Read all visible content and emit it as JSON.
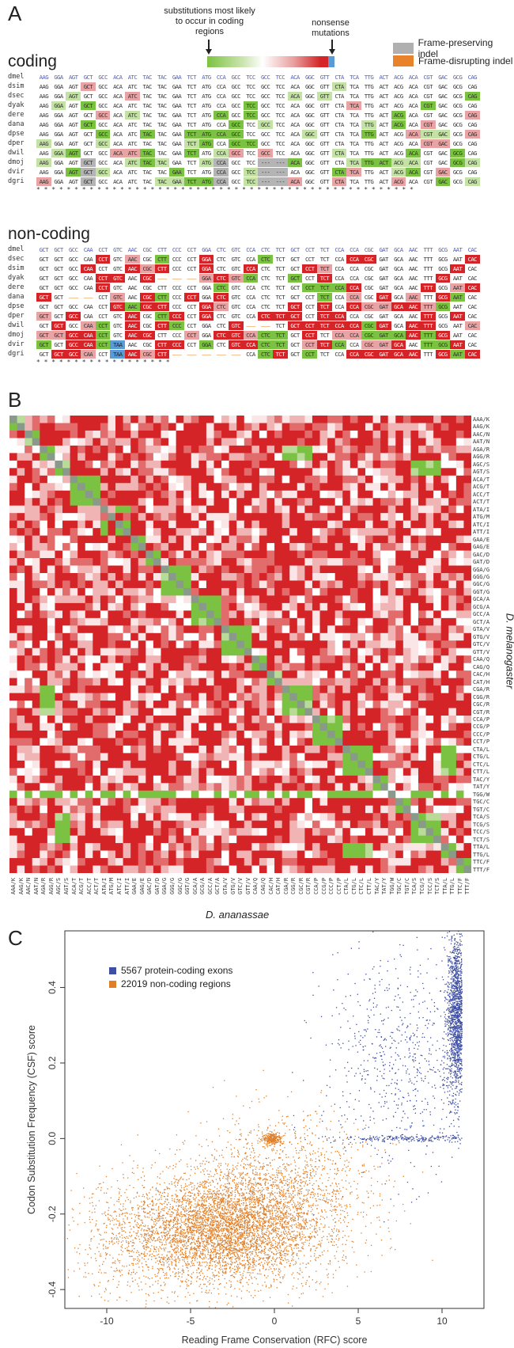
{
  "panels": {
    "a": "A",
    "b": "B",
    "c": "C"
  },
  "panel_a": {
    "note_left": "substitutions most likely to occur in coding regions",
    "note_right": "nonsense mutations",
    "legend": [
      {
        "label": "Frame-preserving indel",
        "color": "#b0b0b0"
      },
      {
        "label": "Frame-disrupting indel",
        "color": "#e9832b"
      }
    ],
    "coding_title": "coding",
    "noncoding_title": "non-coding",
    "coding_species": [
      "dmel",
      "dsim",
      "dsec",
      "dyak",
      "dere",
      "dana",
      "dpse",
      "dper",
      "dwil",
      "dmoj",
      "dvir",
      "dgri"
    ],
    "coding_codons": [
      "AAG",
      "GGA",
      "AGT",
      "GCT",
      "GCC",
      "ACA",
      "ATC",
      "TAC",
      "TAC",
      "GAA",
      "TCT",
      "ATG",
      "CCA",
      "GCC",
      "TCC",
      "GCC",
      "TCC",
      "ACA",
      "GGC",
      "GTT",
      "CTA",
      "TCA",
      "TTG",
      "ACT",
      "ACG",
      "ACA",
      "CGT",
      "GAC",
      "GCG",
      "CAG"
    ],
    "coding_stars": "** * ** ** ** ** ** *** ** ** * ** ** ** ** ** ** **** ** ** * * ** ** * **",
    "noncoding_species": [
      "dmel",
      "dsec",
      "dsim",
      "dyak",
      "dere",
      "dana",
      "dpse",
      "dper",
      "dwil",
      "dmoj",
      "dvir",
      "dgri"
    ],
    "noncoding_codons": [
      "GCT",
      "GCT",
      "GCC",
      "CAA",
      "CCT",
      "GTC",
      "AAC",
      "CGC",
      "CTT",
      "CCC",
      "CCT",
      "GGA",
      "CTC",
      "GTC",
      "CCA",
      "CTC",
      "TCT",
      "GCT",
      "CCT",
      "TCT",
      "CCA",
      "CCA",
      "CGC",
      "GAT",
      "GCA",
      "AAC",
      "TTT",
      "GCG",
      "AAT",
      "CAC"
    ],
    "noncoding_stars": "* * * * * ** ** *** * * ****"
  },
  "panel_b": {
    "xlabel": "D. ananassae",
    "ylabel": "D. melanogaster",
    "codons": [
      "AAA/K",
      "AAG/K",
      "AAC/N",
      "AAT/N",
      "AGA/R",
      "AGG/R",
      "AGC/S",
      "AGT/S",
      "ACA/T",
      "ACG/T",
      "ACC/T",
      "ACT/T",
      "ATA/I",
      "ATG/M",
      "ATC/I",
      "ATT/I",
      "GAA/E",
      "GAG/E",
      "GAC/D",
      "GAT/D",
      "GGA/G",
      "GGG/G",
      "GGC/G",
      "GGT/G",
      "GCA/A",
      "GCG/A",
      "GCC/A",
      "GCT/A",
      "GTA/V",
      "GTG/V",
      "GTC/V",
      "GTT/V",
      "CAA/Q",
      "CAG/Q",
      "CAC/H",
      "CAT/H",
      "CGA/R",
      "CGG/R",
      "CGC/R",
      "CGT/R",
      "CCA/P",
      "CCG/P",
      "CCC/P",
      "CCT/P",
      "CTA/L",
      "CTG/L",
      "CTC/L",
      "CTT/L",
      "TAC/Y",
      "TAT/Y",
      "TGG/W",
      "TGC/C",
      "TGT/C",
      "TCA/S",
      "TCG/S",
      "TCC/S",
      "TCT/S",
      "TTA/L",
      "TTG/L",
      "TTC/F",
      "TTT/F"
    ]
  },
  "chart_data": {
    "type": "scatter",
    "xlabel": "Reading Frame Conservation (RFC) score",
    "ylabel": "Codon Substitution Frequency (CSF) score",
    "xlim": [
      -12.5,
      12.5
    ],
    "ylim": [
      -0.45,
      0.55
    ],
    "xticks": [
      -10,
      -5,
      0,
      5,
      10
    ],
    "yticks": [
      -0.4,
      -0.2,
      0.0,
      0.2,
      0.4
    ],
    "legend_position": "top-left",
    "series": [
      {
        "name": "5567 protein-coding exons",
        "color": "#3e4ea3",
        "clusters": [
          {
            "x": 10.9,
            "y": 0.33,
            "sx": 0.3,
            "sy": 0.11,
            "n": 1700
          },
          {
            "x": 7.5,
            "y": 0.2,
            "sx": 2.3,
            "sy": 0.15,
            "n": 700
          },
          {
            "x": 9.0,
            "y": 0.0,
            "sx": 2.8,
            "sy": 0.004,
            "n": 250
          }
        ]
      },
      {
        "name": "22019 non-coding regions",
        "color": "#e07f28",
        "clusters": [
          {
            "x": -3.0,
            "y": -0.24,
            "sx": 2.6,
            "sy": 0.07,
            "n": 4200
          },
          {
            "x": 0.5,
            "y": -0.15,
            "sx": 2.8,
            "sy": 0.1,
            "n": 1600
          },
          {
            "x": -0.1,
            "y": 0.0,
            "sx": 0.3,
            "sy": 0.008,
            "n": 250
          },
          {
            "x": -8.0,
            "y": -0.27,
            "sx": 2.2,
            "sy": 0.08,
            "n": 700
          }
        ]
      }
    ]
  }
}
